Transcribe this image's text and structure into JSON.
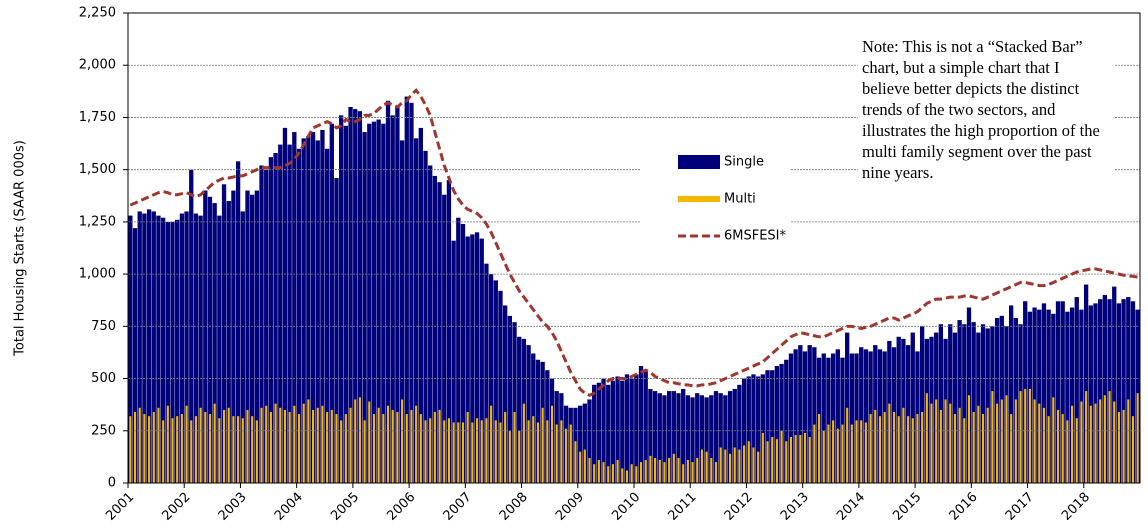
{
  "chart_data": {
    "type": "bar",
    "y_label": "Total Housing Starts (SAAR 000s)",
    "annotation": "Note:  This is not a “Stacked Bar” chart, but a simple chart that I believe better depicts the distinct trends of the two sectors, and illustrates the high proportion of the multi family segment over the past nine years.",
    "ylim": [
      0,
      2250
    ],
    "yticks": [
      0,
      250,
      500,
      750,
      {
        "value": 1000,
        "label": "1,000"
      },
      {
        "value": 1250,
        "label": "1,250"
      },
      {
        "value": 1500,
        "label": "1,500"
      },
      {
        "value": 1750,
        "label": "1,750"
      },
      {
        "value": 2000,
        "label": "2,000"
      },
      {
        "value": 2250,
        "label": "2,250"
      }
    ],
    "grid": true,
    "legend": "center",
    "categories": [
      "2001",
      null,
      null,
      null,
      null,
      null,
      null,
      null,
      null,
      null,
      null,
      null,
      "2002",
      null,
      null,
      null,
      null,
      null,
      null,
      null,
      null,
      null,
      null,
      null,
      "2003",
      null,
      null,
      null,
      null,
      null,
      null,
      null,
      null,
      null,
      null,
      null,
      "2004",
      null,
      null,
      null,
      null,
      null,
      null,
      null,
      null,
      null,
      null,
      null,
      "2005",
      null,
      null,
      null,
      null,
      null,
      null,
      null,
      null,
      null,
      null,
      null,
      "2006",
      null,
      null,
      null,
      null,
      null,
      null,
      null,
      null,
      null,
      null,
      null,
      "2007",
      null,
      null,
      null,
      null,
      null,
      null,
      null,
      null,
      null,
      null,
      null,
      "2008",
      null,
      null,
      null,
      null,
      null,
      null,
      null,
      null,
      null,
      null,
      null,
      "2009",
      null,
      null,
      null,
      null,
      null,
      null,
      null,
      null,
      null,
      null,
      null,
      "2010",
      null,
      null,
      null,
      null,
      null,
      null,
      null,
      null,
      null,
      null,
      null,
      "2011",
      null,
      null,
      null,
      null,
      null,
      null,
      null,
      null,
      null,
      null,
      null,
      "2012",
      null,
      null,
      null,
      null,
      null,
      null,
      null,
      null,
      null,
      null,
      null,
      "2013",
      null,
      null,
      null,
      null,
      null,
      null,
      null,
      null,
      null,
      null,
      null,
      "2014",
      null,
      null,
      null,
      null,
      null,
      null,
      null,
      null,
      null,
      null,
      null,
      "2015",
      null,
      null,
      null,
      null,
      null,
      null,
      null,
      null,
      null,
      null,
      null,
      "2016",
      null,
      null,
      null,
      null,
      null,
      null,
      null,
      null,
      null,
      null,
      null,
      "2017",
      null,
      null,
      null,
      null,
      null,
      null,
      null,
      null,
      null,
      null,
      null,
      "2018",
      null,
      null,
      null,
      null,
      null,
      null,
      null,
      null,
      null,
      null,
      null
    ],
    "series": [
      {
        "name": "Single",
        "type": "bar",
        "color": "#00007a",
        "values": [
          1280,
          1220,
          1300,
          1290,
          1310,
          1300,
          1280,
          1270,
          1250,
          1250,
          1260,
          1290,
          1300,
          1500,
          1290,
          1280,
          1400,
          1370,
          1340,
          1280,
          1430,
          1350,
          1400,
          1540,
          1300,
          1400,
          1380,
          1400,
          1520,
          1500,
          1560,
          1580,
          1620,
          1700,
          1620,
          1680,
          1600,
          1650,
          1660,
          1680,
          1640,
          1690,
          1600,
          1720,
          1460,
          1760,
          1710,
          1800,
          1790,
          1780,
          1680,
          1720,
          1730,
          1740,
          1720,
          1830,
          1760,
          1800,
          1640,
          1850,
          1820,
          1650,
          1700,
          1590,
          1520,
          1470,
          1440,
          1380,
          1450,
          1160,
          1270,
          1240,
          1180,
          1190,
          1200,
          1170,
          1050,
          1000,
          970,
          920,
          850,
          800,
          770,
          700,
          690,
          660,
          620,
          590,
          580,
          540,
          500,
          440,
          430,
          370,
          360,
          360,
          370,
          380,
          400,
          470,
          480,
          500,
          470,
          490,
          510,
          490,
          520,
          500,
          520,
          560,
          540,
          450,
          440,
          430,
          420,
          440,
          440,
          430,
          450,
          420,
          410,
          430,
          420,
          410,
          420,
          440,
          430,
          420,
          440,
          450,
          470,
          500,
          510,
          520,
          510,
          520,
          540,
          540,
          560,
          570,
          590,
          620,
          640,
          660,
          630,
          660,
          650,
          600,
          620,
          600,
          620,
          640,
          600,
          720,
          620,
          620,
          650,
          640,
          630,
          660,
          640,
          630,
          680,
          650,
          700,
          690,
          660,
          720,
          630,
          750,
          690,
          700,
          720,
          760,
          690,
          760,
          720,
          780,
          760,
          840,
          770,
          720,
          760,
          740,
          750,
          790,
          800,
          750,
          850,
          790,
          760,
          870,
          820,
          840,
          830,
          860,
          830,
          810,
          870,
          870,
          820,
          840,
          890,
          830,
          950,
          850,
          860,
          880,
          900,
          880,
          940,
          860,
          880,
          890,
          870,
          830
        ]
      },
      {
        "name": "Multi",
        "type": "bar",
        "color": "#f5b800",
        "values": [
          320,
          340,
          360,
          330,
          320,
          340,
          360,
          300,
          370,
          310,
          320,
          330,
          370,
          300,
          320,
          360,
          340,
          330,
          380,
          310,
          350,
          360,
          320,
          320,
          310,
          350,
          320,
          300,
          360,
          370,
          340,
          380,
          360,
          350,
          340,
          370,
          330,
          380,
          400,
          350,
          360,
          370,
          340,
          350,
          330,
          300,
          330,
          360,
          400,
          410,
          300,
          390,
          330,
          360,
          330,
          370,
          350,
          340,
          400,
          330,
          350,
          370,
          330,
          300,
          310,
          340,
          350,
          300,
          310,
          290,
          290,
          290,
          340,
          290,
          310,
          300,
          310,
          370,
          300,
          290,
          340,
          250,
          340,
          250,
          380,
          300,
          320,
          290,
          360,
          300,
          370,
          280,
          300,
          260,
          280,
          200,
          150,
          160,
          120,
          90,
          110,
          100,
          80,
          90,
          110,
          70,
          60,
          90,
          80,
          100,
          110,
          130,
          120,
          110,
          100,
          120,
          140,
          120,
          90,
          110,
          100,
          120,
          160,
          150,
          120,
          100,
          170,
          160,
          140,
          170,
          160,
          180,
          200,
          170,
          150,
          240,
          200,
          220,
          210,
          250,
          200,
          220,
          230,
          230,
          240,
          220,
          280,
          330,
          250,
          280,
          300,
          260,
          280,
          360,
          280,
          300,
          300,
          290,
          330,
          350,
          320,
          340,
          380,
          340,
          320,
          360,
          320,
          310,
          330,
          340,
          430,
          380,
          400,
          350,
          400,
          380,
          330,
          360,
          310,
          420,
          340,
          370,
          330,
          360,
          440,
          380,
          400,
          420,
          330,
          400,
          440,
          450,
          450,
          400,
          380,
          360,
          320,
          410,
          350,
          330,
          300,
          370,
          310,
          390,
          440,
          370,
          380,
          400,
          420,
          440,
          390,
          340,
          350,
          400,
          320,
          430
        ]
      },
      {
        "name": "6MSFESI*",
        "type": "line",
        "color": "#a0362d",
        "values": [
          1330,
          1340,
          1350,
          1360,
          1370,
          1380,
          1390,
          1395,
          1390,
          1380,
          1380,
          1385,
          1390,
          1380,
          1370,
          1380,
          1400,
          1420,
          1440,
          1450,
          1460,
          1460,
          1465,
          1470,
          1470,
          1480,
          1490,
          1500,
          1510,
          1510,
          1510,
          1510,
          1510,
          1520,
          1530,
          1550,
          1580,
          1620,
          1660,
          1700,
          1710,
          1720,
          1730,
          1720,
          1700,
          1710,
          1740,
          1730,
          1730,
          1740,
          1760,
          1760,
          1770,
          1790,
          1810,
          1820,
          1810,
          1800,
          1820,
          1830,
          1860,
          1880,
          1850,
          1810,
          1760,
          1680,
          1600,
          1520,
          1460,
          1400,
          1360,
          1330,
          1310,
          1300,
          1290,
          1270,
          1240,
          1200,
          1150,
          1100,
          1050,
          1000,
          960,
          920,
          890,
          860,
          830,
          800,
          770,
          750,
          720,
          680,
          630,
          580,
          530,
          490,
          450,
          430,
          420,
          430,
          450,
          470,
          490,
          500,
          500,
          500,
          500,
          510,
          520,
          530,
          540,
          530,
          510,
          500,
          490,
          480,
          480,
          475,
          470,
          470,
          465,
          465,
          470,
          470,
          475,
          480,
          490,
          500,
          510,
          520,
          530,
          540,
          550,
          560,
          570,
          580,
          600,
          620,
          640,
          660,
          680,
          700,
          710,
          720,
          715,
          710,
          705,
          700,
          700,
          710,
          720,
          730,
          740,
          750,
          750,
          745,
          740,
          745,
          750,
          760,
          770,
          780,
          790,
          790,
          780,
          790,
          800,
          810,
          820,
          840,
          860,
          870,
          880,
          880,
          885,
          890,
          890,
          890,
          895,
          895,
          890,
          885,
          880,
          890,
          900,
          910,
          920,
          930,
          940,
          950,
          960,
          960,
          955,
          950,
          945,
          945,
          950,
          960,
          970,
          980,
          990,
          1000,
          1010,
          1015,
          1020,
          1025,
          1025,
          1020,
          1015,
          1010,
          1005,
          1000,
          995,
          990,
          990,
          985
        ]
      }
    ]
  }
}
